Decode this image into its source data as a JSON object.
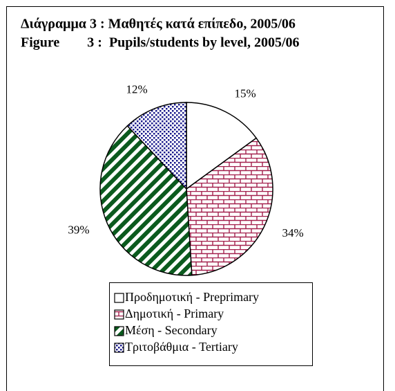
{
  "chart_data": {
    "type": "pie",
    "title": [
      "Διάγραμμα 3 : Μαθητές κατά επίπεδο, 2005/06",
      "Figure        3 :  Pupils/students by level, 2005/06"
    ],
    "categories": [
      "Προδημοτική - Preprimary",
      "Δημοτική - Primary",
      "Μέση - Secondary",
      "Τριτοβάθμια - Tertiary"
    ],
    "values": [
      15,
      34,
      39,
      12
    ],
    "value_labels": [
      "15%",
      "34%",
      "39%",
      "12%"
    ],
    "colors": [
      "#ffffff",
      "#a3204d",
      "#0b5a1e",
      "#1a1a8c"
    ],
    "patterns": [
      "solid",
      "brick",
      "stripes",
      "dots"
    ]
  }
}
